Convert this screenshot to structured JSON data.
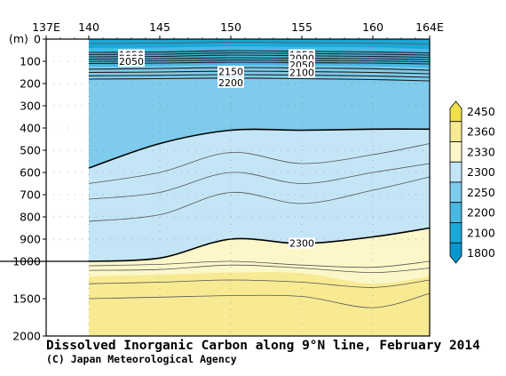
{
  "chart_data": {
    "type": "heatmap",
    "title": "Dissolved Inorganic Carbon along 9°N line, February 2014",
    "credit": "(C) Japan Meteorological Agency",
    "xlabel": "",
    "ylabel": "(m)",
    "x_axis": {
      "label_values": [
        137,
        140,
        145,
        150,
        155,
        160,
        164
      ],
      "tick_labels": [
        "137E",
        "140",
        "145",
        "150",
        "155",
        "160",
        "164E"
      ],
      "range": [
        137,
        164
      ]
    },
    "y_axis": {
      "unit_label": "(m)",
      "upper_ticks": [
        0,
        100,
        200,
        300,
        400,
        500,
        600,
        700,
        800,
        900,
        1000
      ],
      "lower_ticks": [
        1500,
        2000
      ],
      "range": [
        0,
        2000
      ],
      "scale_break_at": 1000
    },
    "data_start_lon": 140,
    "sections_lon": [
      140,
      145,
      150,
      155,
      160,
      164
    ],
    "bands": [
      {
        "lo": 1800,
        "hi": 2100,
        "color": "#1aa8d8",
        "depths": [
          40,
          38,
          33,
          35,
          37,
          45
        ]
      },
      {
        "lo": 2100,
        "hi": 2200,
        "color": "#49b8e2",
        "depths": [
          125,
          122,
          118,
          120,
          123,
          130
        ]
      },
      {
        "lo": 2200,
        "hi": 2250,
        "color": "#7ecbeb",
        "depths": [
          580,
          470,
          410,
          410,
          405,
          405
        ]
      },
      {
        "lo": 2250,
        "hi": 2300,
        "color": "#c4e5f6",
        "depths": [
          1000,
          985,
          900,
          920,
          890,
          850
        ]
      },
      {
        "lo": 2300,
        "hi": 2330,
        "color": "#fcf7c9",
        "depths": [
          1200,
          1180,
          1150,
          1160,
          1300,
          1200
        ]
      },
      {
        "lo": 2330,
        "hi": 2360,
        "color": "#f7ea93",
        "depths": [
          2000,
          2000,
          2000,
          2000,
          2000,
          2000
        ]
      }
    ],
    "thick_contours": [
      {
        "value": 2200,
        "depths": [
          580,
          470,
          410,
          410,
          405,
          405
        ]
      },
      {
        "value": 2300,
        "depths": [
          1000,
          985,
          900,
          920,
          890,
          850
        ]
      }
    ],
    "thin_contours": [
      [
        20,
        18,
        14,
        16,
        18,
        22
      ],
      [
        650,
        600,
        510,
        560,
        520,
        470
      ],
      [
        720,
        690,
        600,
        650,
        600,
        560
      ],
      [
        820,
        790,
        690,
        740,
        680,
        620
      ],
      [
        1060,
        1040,
        1000,
        1050,
        1080,
        1000
      ],
      [
        1120,
        1110,
        1050,
        1090,
        1150,
        1090
      ],
      [
        1300,
        1280,
        1250,
        1280,
        1350,
        1250
      ],
      [
        1500,
        1480,
        1460,
        1470,
        1620,
        1430
      ]
    ],
    "thermocline_contours": [
      [
        60,
        58,
        52,
        55,
        58,
        62
      ],
      [
        70,
        68,
        62,
        65,
        68,
        72
      ],
      [
        80,
        78,
        72,
        75,
        78,
        82
      ],
      [
        90,
        88,
        84,
        86,
        88,
        92
      ],
      [
        100,
        98,
        94,
        96,
        98,
        102
      ],
      [
        110,
        108,
        104,
        106,
        108,
        112
      ],
      [
        135,
        132,
        128,
        130,
        133,
        140
      ],
      [
        150,
        148,
        144,
        146,
        150,
        156
      ],
      [
        165,
        163,
        160,
        162,
        166,
        172
      ],
      [
        180,
        178,
        175,
        178,
        182,
        188
      ]
    ],
    "contour_labels": [
      {
        "text": "1950",
        "lon": 143,
        "depth": 70
      },
      {
        "text": "2000",
        "lon": 143,
        "depth": 85
      },
      {
        "text": "2050",
        "lon": 143,
        "depth": 100
      },
      {
        "text": "2150",
        "lon": 150,
        "depth": 145
      },
      {
        "text": "2200",
        "lon": 150,
        "depth": 195
      },
      {
        "text": "1950",
        "lon": 155,
        "depth": 70
      },
      {
        "text": "2000",
        "lon": 155,
        "depth": 85
      },
      {
        "text": "2050",
        "lon": 155,
        "depth": 115
      },
      {
        "text": "2100",
        "lon": 155,
        "depth": 150
      },
      {
        "text": "2300",
        "lon": 155,
        "depth": 918
      }
    ],
    "colorbar": {
      "labels": [
        "2450",
        "2360",
        "2330",
        "2300",
        "2250",
        "2200",
        "2100",
        "1800"
      ],
      "colors": [
        "#f0e04a",
        "#f7ea93",
        "#fcf7c9",
        "#c4e5f6",
        "#7ecbeb",
        "#49b8e2",
        "#1aa8d8",
        "#0896cf"
      ]
    }
  }
}
